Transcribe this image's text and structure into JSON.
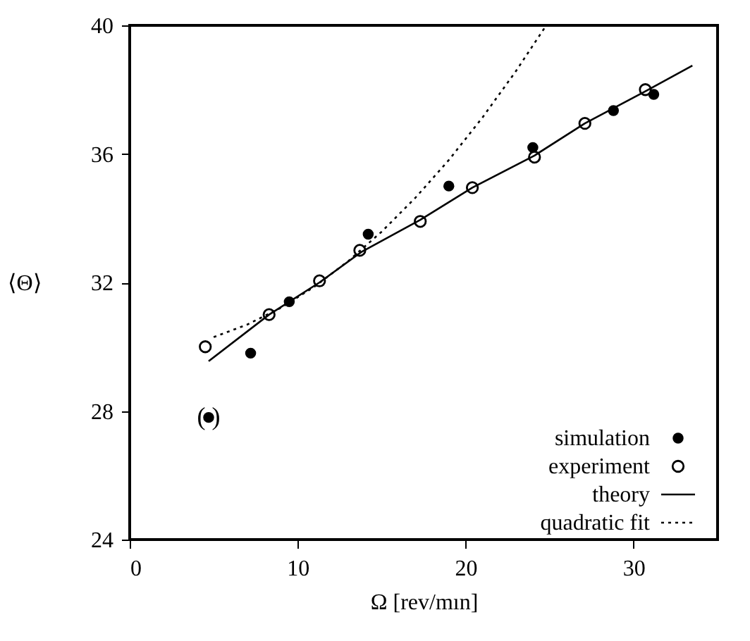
{
  "chart_data": {
    "type": "scatter",
    "xlabel": "Ω [rev/mın]",
    "ylabel": "⟨Θ⟩",
    "xlim": [
      0,
      35
    ],
    "ylim": [
      24,
      40
    ],
    "xticks": [
      0,
      10,
      20,
      30
    ],
    "yticks": [
      24,
      28,
      32,
      36,
      40
    ],
    "grid": false,
    "legend": "bottom right",
    "annotations": [
      {
        "text": "(    )",
        "x": 4.7,
        "y": 27.8
      }
    ],
    "series": [
      {
        "name": "simulation",
        "marker": "circle",
        "color": "#000000",
        "x": [
          4.7,
          7.2,
          9.5,
          14.2,
          19.0,
          24.0,
          28.8,
          31.2
        ],
        "values": [
          27.8,
          29.8,
          31.4,
          33.5,
          35.0,
          36.2,
          37.35,
          37.85
        ]
      },
      {
        "name": "experiment",
        "marker": "circle",
        "color": "#000000",
        "x": [
          4.5,
          8.3,
          11.3,
          13.7,
          17.3,
          20.4,
          24.1,
          27.1,
          30.7
        ],
        "values": [
          30.0,
          31.0,
          32.05,
          33.0,
          33.9,
          34.95,
          35.9,
          36.95,
          38.0
        ]
      },
      {
        "name": "theory",
        "type": "line",
        "line_style": "solid",
        "color": "#000000",
        "x": [
          4.7,
          8.3,
          11.3,
          13.8,
          17.3,
          20.4,
          24.1,
          27.1,
          30.7,
          33.5
        ],
        "values": [
          29.55,
          31.0,
          32.0,
          32.95,
          33.95,
          34.95,
          35.95,
          36.95,
          37.95,
          38.75
        ]
      },
      {
        "name": "quadratic fit",
        "type": "line",
        "line_style": "dotted",
        "color": "#000000",
        "x": [
          5,
          7,
          9,
          11,
          13,
          15,
          17,
          19,
          21,
          23,
          24.8
        ],
        "values": [
          30.3,
          30.69,
          31.21,
          31.87,
          32.66,
          33.58,
          34.63,
          35.81,
          37.13,
          38.58,
          40.0
        ]
      }
    ]
  }
}
